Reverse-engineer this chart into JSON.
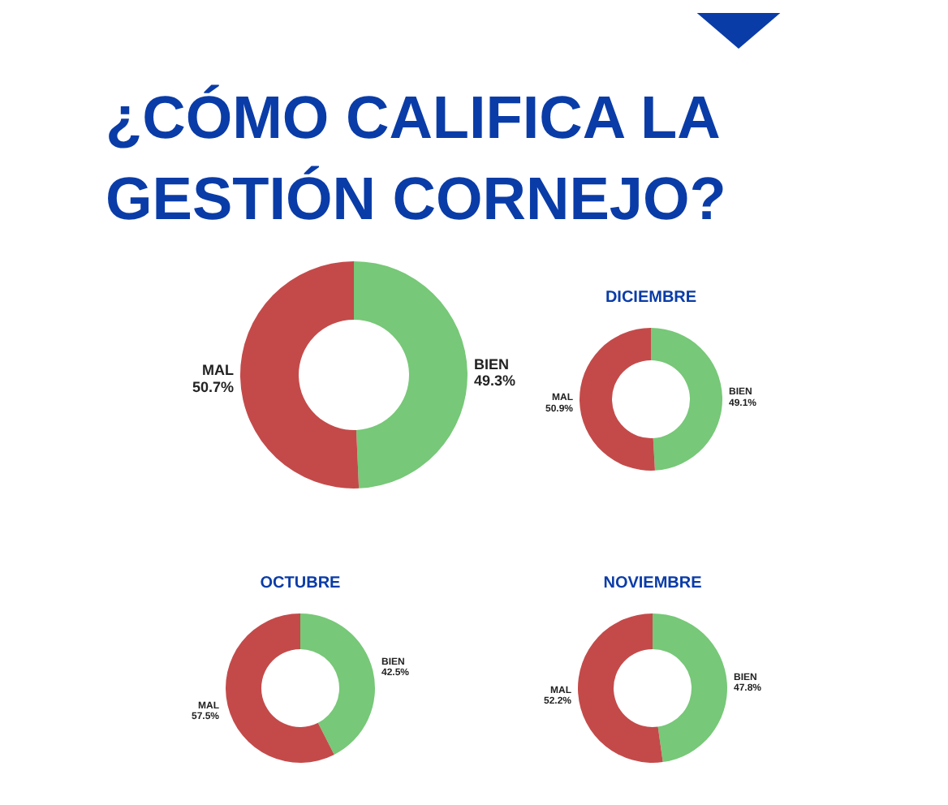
{
  "chart_data": [
    {
      "type": "donut",
      "title": "¿CÓMO CALIFICA LA GESTIÓN CORNEJO?",
      "categories": [
        "BIEN",
        "MAL"
      ],
      "values": [
        49.3,
        50.7
      ],
      "colors": [
        "#77c878",
        "#c44a4a"
      ],
      "value_labels": [
        "49.3%",
        "50.7%"
      ]
    },
    {
      "type": "donut",
      "title": "DICIEMBRE",
      "categories": [
        "BIEN",
        "MAL"
      ],
      "values": [
        49.1,
        50.9
      ],
      "colors": [
        "#77c878",
        "#c44a4a"
      ],
      "value_labels": [
        "49.1%",
        "50.9%"
      ]
    },
    {
      "type": "donut",
      "title": "OCTUBRE",
      "categories": [
        "BIEN",
        "MAL"
      ],
      "values": [
        42.5,
        57.5
      ],
      "colors": [
        "#77c878",
        "#c44a4a"
      ],
      "value_labels": [
        "42.5%",
        "57.5%"
      ]
    },
    {
      "type": "donut",
      "title": "NOVIEMBRE",
      "categories": [
        "BIEN",
        "MAL"
      ],
      "values": [
        47.8,
        52.2
      ],
      "colors": [
        "#77c878",
        "#c44a4a"
      ],
      "value_labels": [
        "47.8%",
        "52.2%"
      ]
    }
  ]
}
